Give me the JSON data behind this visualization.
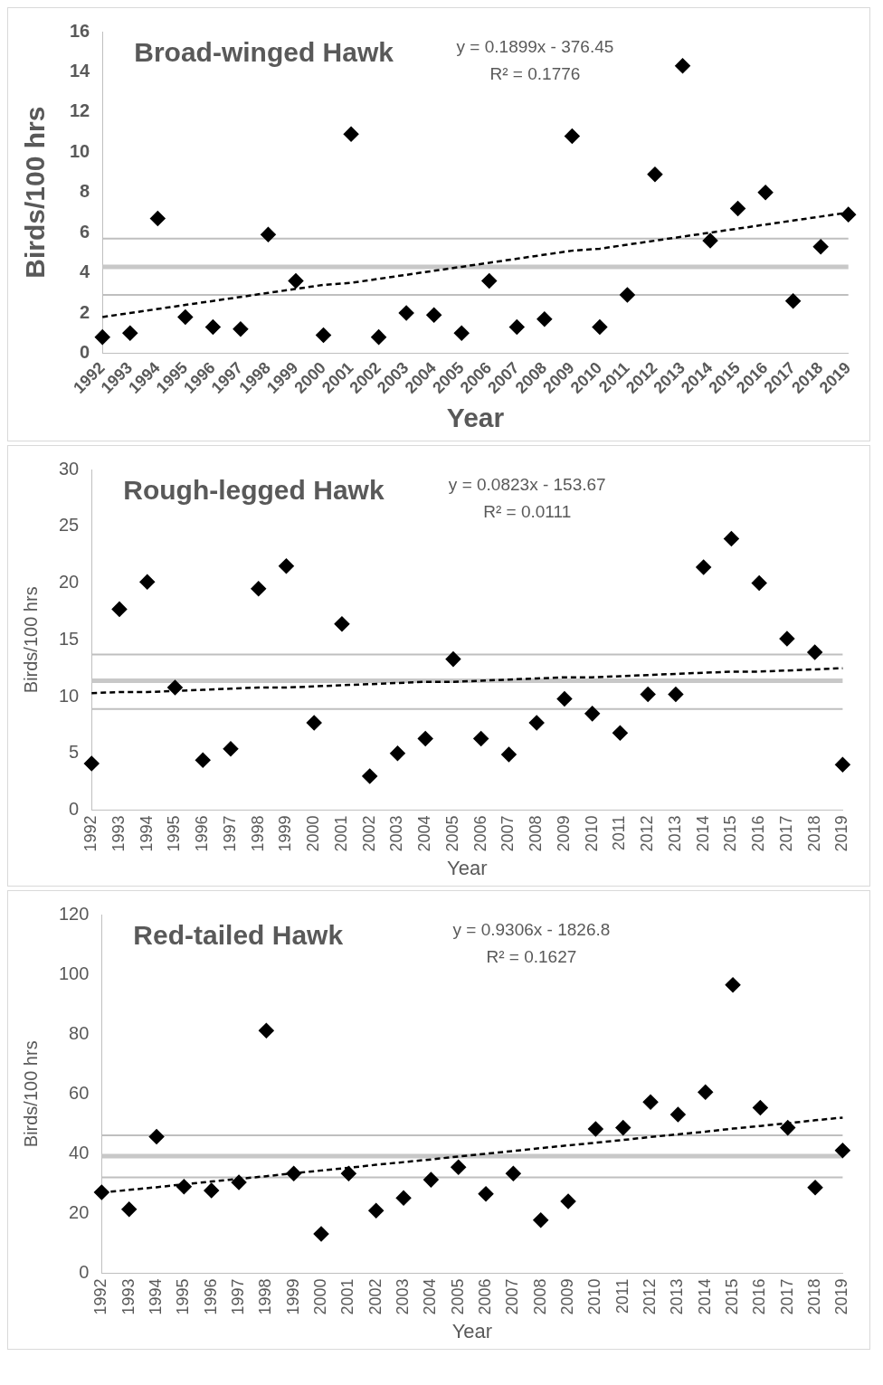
{
  "chart_data": [
    {
      "type": "scatter",
      "title": "Broad-winged Hawk",
      "xlabel": "Year",
      "ylabel": "Birds/100 hrs",
      "categories": [
        "1992",
        "1993",
        "1994",
        "1995",
        "1996",
        "1997",
        "1998",
        "1999",
        "2000",
        "2001",
        "2002",
        "2003",
        "2004",
        "2005",
        "2006",
        "2007",
        "2008",
        "2009",
        "2010",
        "2011",
        "2012",
        "2013",
        "2014",
        "2015",
        "2016",
        "2017",
        "2018",
        "2019"
      ],
      "series": [
        {
          "color": "#000000",
          "marker": "diamond",
          "values": [
            0.8,
            1.0,
            6.7,
            1.8,
            1.3,
            1.2,
            5.9,
            3.6,
            0.9,
            10.9,
            0.8,
            2.0,
            1.9,
            1.0,
            3.6,
            1.3,
            1.7,
            10.8,
            1.3,
            2.9,
            8.9,
            14.3,
            5.6,
            7.2,
            8.0,
            2.6,
            5.3,
            6.9
          ]
        },
        {
          "type": "line",
          "color": "#000000",
          "marker": "none",
          "line_style": "dashed",
          "values": [
            1.8,
            2.0,
            2.2,
            2.4,
            2.6,
            2.8,
            3.0,
            3.2,
            3.4,
            3.5,
            3.7,
            3.9,
            4.1,
            4.3,
            4.5,
            4.7,
            4.9,
            5.1,
            5.2,
            5.4,
            5.6,
            5.8,
            6.0,
            6.2,
            6.4,
            6.6,
            6.8,
            7.0
          ]
        }
      ],
      "ylim": [
        0,
        16
      ],
      "yticks": [
        0,
        2,
        4,
        6,
        8,
        10,
        12,
        14,
        16
      ],
      "ref_lines": [
        {
          "axis": "y",
          "value": 5.7,
          "color": "#bfbfbf"
        },
        {
          "axis": "y",
          "value": 4.3,
          "color": "#c8c8c8"
        },
        {
          "axis": "y",
          "value": 2.9,
          "color": "#bfbfbf"
        }
      ],
      "annotations": [
        "y = 0.1899x - 376.45",
        "R² = 0.1776"
      ],
      "grid": false,
      "legend": false
    },
    {
      "type": "scatter",
      "title": "Rough-legged Hawk",
      "xlabel": "Year",
      "ylabel": "Birds/100 hrs",
      "categories": [
        "1992",
        "1993",
        "1994",
        "1995",
        "1996",
        "1997",
        "1998",
        "1999",
        "2000",
        "2001",
        "2002",
        "2003",
        "2004",
        "2005",
        "2006",
        "2007",
        "2008",
        "2009",
        "2010",
        "2011",
        "2012",
        "2013",
        "2014",
        "2015",
        "2016",
        "2017",
        "2018",
        "2019"
      ],
      "series": [
        {
          "color": "#000000",
          "marker": "diamond",
          "values": [
            4.1,
            17.7,
            20.1,
            10.8,
            4.4,
            5.4,
            19.5,
            21.5,
            7.7,
            16.4,
            3.0,
            5.0,
            6.3,
            13.3,
            6.3,
            4.9,
            7.7,
            9.8,
            8.5,
            6.8,
            10.2,
            10.2,
            21.4,
            23.9,
            20.0,
            15.1,
            13.9,
            4.0
          ]
        },
        {
          "type": "line",
          "color": "#000000",
          "marker": "none",
          "line_style": "dashed",
          "values": [
            10.3,
            10.4,
            10.4,
            10.5,
            10.6,
            10.7,
            10.8,
            10.8,
            10.9,
            11.0,
            11.1,
            11.2,
            11.3,
            11.3,
            11.4,
            11.5,
            11.6,
            11.7,
            11.7,
            11.8,
            11.9,
            12.0,
            12.1,
            12.2,
            12.2,
            12.3,
            12.4,
            12.5
          ]
        }
      ],
      "ylim": [
        0,
        30
      ],
      "yticks": [
        0,
        5,
        10,
        15,
        20,
        25,
        30
      ],
      "ref_lines": [
        {
          "axis": "y",
          "value": 13.7,
          "color": "#bfbfbf"
        },
        {
          "axis": "y",
          "value": 11.4,
          "color": "#c8c8c8"
        },
        {
          "axis": "y",
          "value": 8.9,
          "color": "#bfbfbf"
        }
      ],
      "annotations": [
        "y = 0.0823x - 153.67",
        "R² = 0.0111"
      ],
      "grid": false,
      "legend": false
    },
    {
      "type": "scatter",
      "title": "Red-tailed Hawk",
      "xlabel": "Year",
      "ylabel": "Birds/100 hrs",
      "categories": [
        "1992",
        "1993",
        "1994",
        "1995",
        "1996",
        "1997",
        "1998",
        "1999",
        "2000",
        "2001",
        "2002",
        "2003",
        "2004",
        "2005",
        "2006",
        "2007",
        "2008",
        "2009",
        "2010",
        "2011",
        "2012",
        "2013",
        "2014",
        "2015",
        "2016",
        "2017",
        "2018",
        "2019"
      ],
      "series": [
        {
          "color": "#000000",
          "marker": "diamond",
          "values": [
            27.1,
            21.4,
            45.7,
            29.0,
            27.7,
            30.4,
            81.2,
            33.4,
            13.2,
            33.4,
            21.0,
            25.2,
            31.3,
            35.5,
            26.6,
            33.4,
            17.8,
            24.1,
            48.3,
            48.7,
            57.3,
            53.1,
            60.6,
            96.5,
            55.4,
            48.7,
            28.7,
            41.1
          ]
        },
        {
          "type": "line",
          "color": "#000000",
          "marker": "none",
          "line_style": "dashed",
          "values": [
            27.0,
            27.9,
            28.8,
            29.8,
            30.7,
            31.6,
            32.5,
            33.5,
            34.4,
            35.3,
            36.3,
            37.2,
            38.1,
            39.1,
            40.0,
            40.9,
            41.9,
            42.8,
            43.7,
            44.6,
            45.6,
            46.5,
            47.4,
            48.4,
            49.3,
            50.2,
            51.2,
            52.1
          ]
        }
      ],
      "ylim": [
        0,
        120
      ],
      "yticks": [
        0,
        20,
        40,
        60,
        80,
        100,
        120
      ],
      "ref_lines": [
        {
          "axis": "y",
          "value": 46.2,
          "color": "#bfbfbf"
        },
        {
          "axis": "y",
          "value": 39.2,
          "color": "#c8c8c8"
        },
        {
          "axis": "y",
          "value": 32.1,
          "color": "#bfbfbf"
        }
      ],
      "annotations": [
        "y = 0.9306x - 1826.8",
        "R² = 0.1627"
      ],
      "grid": false,
      "legend": false
    }
  ]
}
